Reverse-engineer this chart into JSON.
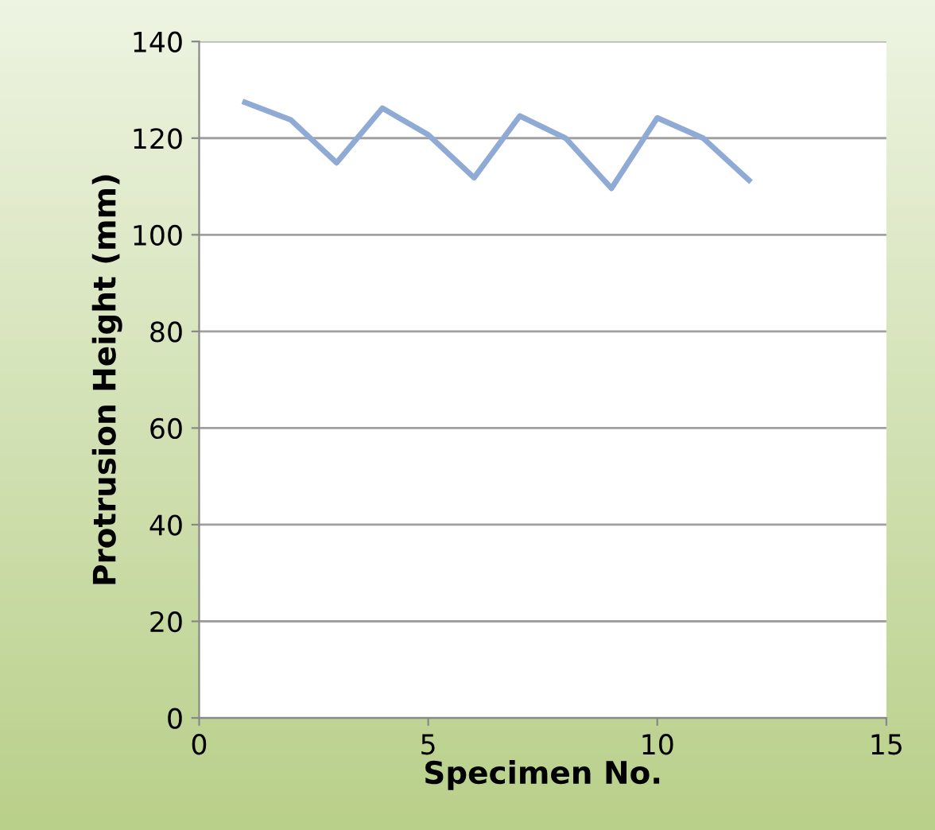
{
  "chart_data": {
    "type": "line",
    "xlabel": "Specimen No.",
    "ylabel": "Protrusion Height (mm)",
    "x": [
      1,
      2,
      3,
      4,
      5,
      6,
      7,
      8,
      9,
      10,
      11,
      12
    ],
    "series": [
      {
        "color": "#8faad4",
        "values": [
          127.4,
          123.8,
          114.9,
          126.2,
          120.7,
          111.8,
          124.6,
          120,
          109.6,
          124.2,
          120,
          111.3
        ]
      }
    ],
    "xlim": [
      0,
      15
    ],
    "xticks": [
      0,
      5,
      10,
      15
    ],
    "ylim": [
      0,
      140
    ],
    "yticks": [
      0,
      20,
      40,
      60,
      80,
      100,
      120,
      140
    ],
    "grid": "y",
    "legend": false,
    "marker": "none",
    "line_style": "solid"
  }
}
